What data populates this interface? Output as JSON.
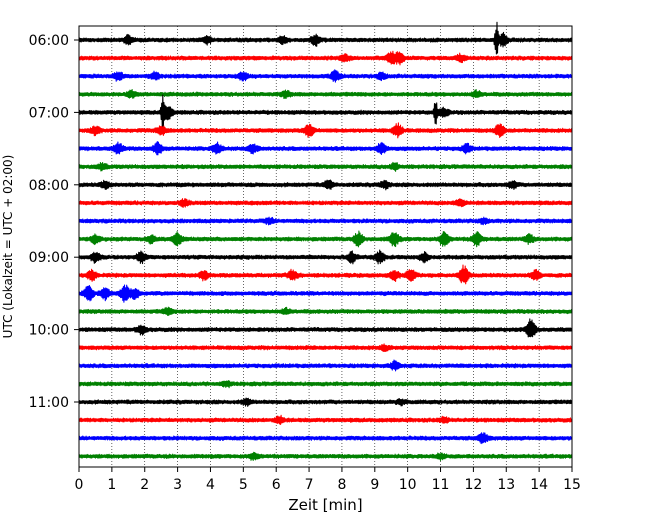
{
  "chart_data": {
    "type": "line",
    "xlabel": "Zeit  [min]",
    "ylabel": "UTC (Lokalzeit = UTC + 02:00)",
    "xlim": [
      0,
      15
    ],
    "x_ticks": [
      0,
      1,
      2,
      3,
      4,
      5,
      6,
      7,
      8,
      9,
      10,
      11,
      12,
      13,
      14,
      15
    ],
    "x_tick_labels": [
      "0",
      "1",
      "2",
      "3",
      "4",
      "5",
      "6",
      "7",
      "8",
      "9",
      "10",
      "11",
      "12",
      "13",
      "14",
      "15"
    ],
    "grid": "vertical dotted",
    "time_start_utc": "06:00",
    "trace_interval_minutes": 15,
    "y_tick_labels": [
      "06:00",
      "07:00",
      "08:00",
      "09:00",
      "10:00",
      "11:00"
    ],
    "y_tick_rows": [
      0,
      4,
      8,
      12,
      16,
      20
    ],
    "colors": [
      "#000000",
      "#ff0000",
      "#0000ff",
      "#008000"
    ],
    "traces": [
      {
        "start": "06:00",
        "color": "#000000",
        "events": [
          [
            1.5,
            0.35
          ],
          [
            3.9,
            0.3
          ],
          [
            6.2,
            0.3
          ],
          [
            7.2,
            0.45
          ],
          [
            12.7,
            1.6
          ],
          [
            12.9,
            0.6
          ]
        ]
      },
      {
        "start": "06:15",
        "color": "#ff0000",
        "events": [
          [
            8.1,
            0.25
          ],
          [
            9.5,
            0.55
          ],
          [
            9.75,
            0.45
          ],
          [
            11.6,
            0.3
          ]
        ]
      },
      {
        "start": "06:30",
        "color": "#0000ff",
        "events": [
          [
            1.2,
            0.35
          ],
          [
            2.3,
            0.3
          ],
          [
            5.0,
            0.35
          ],
          [
            7.8,
            0.45
          ],
          [
            9.2,
            0.25
          ]
        ]
      },
      {
        "start": "06:45",
        "color": "#008000",
        "events": [
          [
            1.6,
            0.25
          ],
          [
            6.3,
            0.25
          ],
          [
            12.1,
            0.25
          ]
        ]
      },
      {
        "start": "07:00",
        "color": "#000000",
        "events": [
          [
            2.55,
            1.5
          ],
          [
            2.7,
            0.6
          ],
          [
            10.85,
            1.2
          ],
          [
            11.1,
            0.4
          ]
        ]
      },
      {
        "start": "07:15",
        "color": "#ff0000",
        "events": [
          [
            0.5,
            0.35
          ],
          [
            2.5,
            0.35
          ],
          [
            7.0,
            0.5
          ],
          [
            9.7,
            0.55
          ],
          [
            12.8,
            0.5
          ]
        ]
      },
      {
        "start": "07:30",
        "color": "#0000ff",
        "events": [
          [
            1.2,
            0.45
          ],
          [
            2.4,
            0.5
          ],
          [
            4.2,
            0.45
          ],
          [
            5.3,
            0.4
          ],
          [
            9.2,
            0.45
          ],
          [
            11.8,
            0.35
          ]
        ]
      },
      {
        "start": "07:45",
        "color": "#008000",
        "events": [
          [
            0.7,
            0.25
          ],
          [
            9.6,
            0.25
          ]
        ]
      },
      {
        "start": "08:00",
        "color": "#000000",
        "events": [
          [
            0.8,
            0.3
          ],
          [
            7.6,
            0.35
          ],
          [
            9.3,
            0.3
          ],
          [
            13.2,
            0.3
          ]
        ]
      },
      {
        "start": "08:15",
        "color": "#ff0000",
        "events": [
          [
            3.2,
            0.25
          ],
          [
            11.6,
            0.3
          ]
        ]
      },
      {
        "start": "08:30",
        "color": "#0000ff",
        "events": [
          [
            5.8,
            0.2
          ],
          [
            12.3,
            0.2
          ]
        ]
      },
      {
        "start": "08:45",
        "color": "#008000",
        "events": [
          [
            0.5,
            0.35
          ],
          [
            2.2,
            0.3
          ],
          [
            3.0,
            0.55
          ],
          [
            8.5,
            0.55
          ],
          [
            9.6,
            0.6
          ],
          [
            11.1,
            0.6
          ],
          [
            12.1,
            0.55
          ],
          [
            13.7,
            0.35
          ]
        ]
      },
      {
        "start": "09:00",
        "color": "#000000",
        "events": [
          [
            0.5,
            0.4
          ],
          [
            1.9,
            0.45
          ],
          [
            8.3,
            0.45
          ],
          [
            9.15,
            0.5
          ],
          [
            10.5,
            0.35
          ]
        ]
      },
      {
        "start": "09:15",
        "color": "#ff0000",
        "events": [
          [
            0.4,
            0.4
          ],
          [
            3.8,
            0.35
          ],
          [
            6.5,
            0.45
          ],
          [
            9.6,
            0.45
          ],
          [
            10.1,
            0.5
          ],
          [
            11.7,
            0.8
          ],
          [
            13.9,
            0.4
          ]
        ]
      },
      {
        "start": "09:30",
        "color": "#0000ff",
        "events": [
          [
            0.3,
            0.6
          ],
          [
            0.8,
            0.5
          ],
          [
            1.4,
            0.7
          ],
          [
            1.7,
            0.4
          ]
        ]
      },
      {
        "start": "09:45",
        "color": "#008000",
        "events": [
          [
            2.7,
            0.25
          ],
          [
            6.3,
            0.2
          ]
        ]
      },
      {
        "start": "10:00",
        "color": "#000000",
        "events": [
          [
            1.9,
            0.35
          ],
          [
            13.75,
            0.9
          ]
        ]
      },
      {
        "start": "10:15",
        "color": "#ff0000",
        "events": [
          [
            9.3,
            0.2
          ]
        ]
      },
      {
        "start": "10:30",
        "color": "#0000ff",
        "events": [
          [
            9.6,
            0.35
          ]
        ]
      },
      {
        "start": "10:45",
        "color": "#008000",
        "events": [
          [
            4.5,
            0.2
          ]
        ]
      },
      {
        "start": "11:00",
        "color": "#000000",
        "events": [
          [
            5.1,
            0.25
          ],
          [
            9.8,
            0.2
          ]
        ]
      },
      {
        "start": "11:15",
        "color": "#ff0000",
        "events": [
          [
            6.1,
            0.3
          ],
          [
            11.1,
            0.2
          ]
        ]
      },
      {
        "start": "11:30",
        "color": "#0000ff",
        "events": [
          [
            12.3,
            0.45
          ]
        ]
      },
      {
        "start": "11:45",
        "color": "#008000",
        "events": [
          [
            5.3,
            0.25
          ],
          [
            11.0,
            0.2
          ]
        ]
      }
    ]
  }
}
